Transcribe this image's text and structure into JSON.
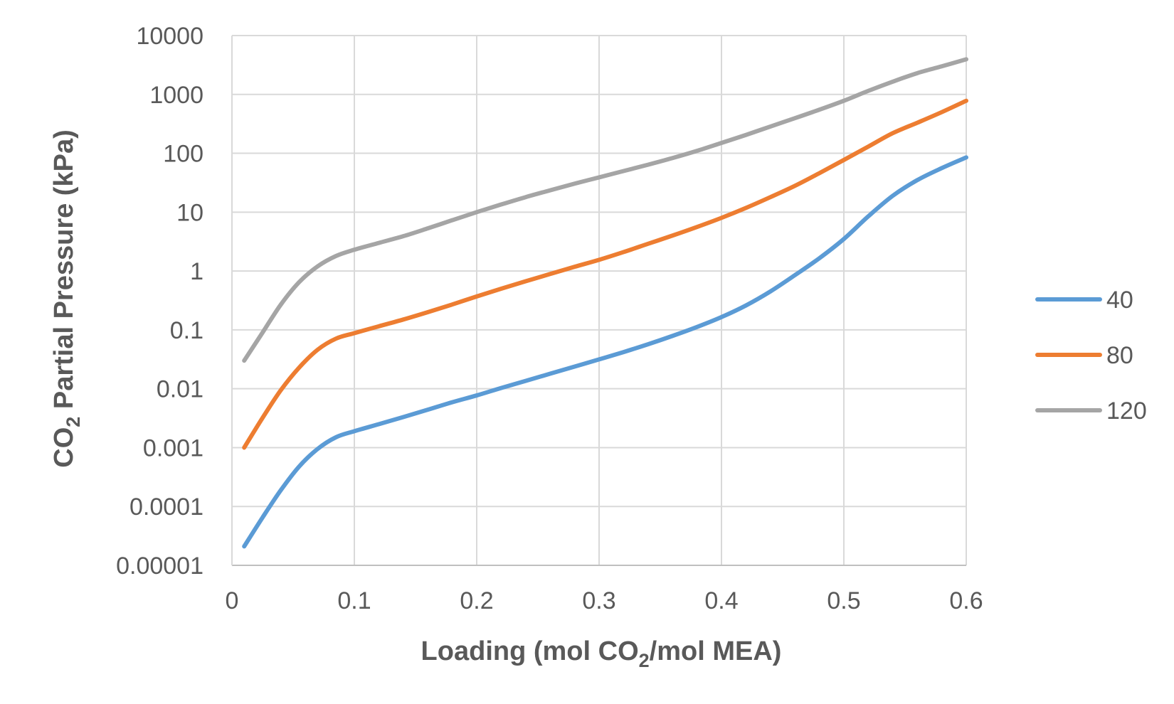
{
  "chart_data": {
    "type": "line",
    "title": "",
    "xlabel": {
      "before_sub": "Loading (mol CO",
      "sub": "2",
      "after_sub": "/mol MEA)"
    },
    "ylabel": {
      "before_sub": "CO",
      "sub": "2",
      "after_sub": " Partial Pressure (kPa)"
    },
    "x_axis": {
      "range": [
        0,
        0.6
      ],
      "ticks": [
        0,
        0.1,
        0.2,
        0.3,
        0.4,
        0.5,
        0.6
      ],
      "tick_labels": [
        "0",
        "0.1",
        "0.2",
        "0.3",
        "0.4",
        "0.5",
        "0.6"
      ]
    },
    "y_axis": {
      "scale": "log",
      "range": [
        1e-05,
        10000
      ],
      "ticks": [
        1e-05,
        0.0001,
        0.001,
        0.01,
        0.1,
        1,
        10,
        100,
        1000,
        10000
      ],
      "tick_labels": [
        "0.00001",
        "0.0001",
        "0.001",
        "0.01",
        "0.1",
        "1",
        "10",
        "100",
        "1000",
        "10000"
      ]
    },
    "grid": true,
    "legend_position": "right",
    "series": [
      {
        "name": "40",
        "color": "#5B9BD5",
        "x": [
          0.01,
          0.025,
          0.04,
          0.055,
          0.07,
          0.085,
          0.1,
          0.12,
          0.14,
          0.16,
          0.18,
          0.2,
          0.22,
          0.24,
          0.26,
          0.28,
          0.3,
          0.32,
          0.34,
          0.36,
          0.38,
          0.4,
          0.42,
          0.44,
          0.46,
          0.48,
          0.5,
          0.52,
          0.54,
          0.56,
          0.58,
          0.6
        ],
        "y": [
          2.1e-05,
          6.5e-05,
          0.00019,
          0.00048,
          0.00095,
          0.0015,
          0.0019,
          0.0025,
          0.0033,
          0.0044,
          0.0059,
          0.0077,
          0.0103,
          0.0136,
          0.018,
          0.0238,
          0.0315,
          0.042,
          0.057,
          0.079,
          0.112,
          0.165,
          0.26,
          0.45,
          0.85,
          1.65,
          3.5,
          8.5,
          19,
          35,
          56,
          85
        ]
      },
      {
        "name": "80",
        "color": "#ED7D31",
        "x": [
          0.01,
          0.025,
          0.04,
          0.055,
          0.07,
          0.085,
          0.1,
          0.12,
          0.14,
          0.16,
          0.18,
          0.2,
          0.22,
          0.24,
          0.26,
          0.28,
          0.3,
          0.32,
          0.34,
          0.36,
          0.38,
          0.4,
          0.42,
          0.44,
          0.46,
          0.48,
          0.5,
          0.52,
          0.54,
          0.56,
          0.58,
          0.6
        ],
        "y": [
          0.001,
          0.0032,
          0.0095,
          0.023,
          0.046,
          0.071,
          0.088,
          0.115,
          0.15,
          0.2,
          0.27,
          0.37,
          0.5,
          0.67,
          0.89,
          1.18,
          1.55,
          2.1,
          2.9,
          4.0,
          5.6,
          8.0,
          11.8,
          18,
          28,
          46,
          77,
          130,
          220,
          330,
          500,
          780
        ]
      },
      {
        "name": "120",
        "color": "#A5A5A5",
        "x": [
          0.01,
          0.025,
          0.04,
          0.055,
          0.07,
          0.085,
          0.1,
          0.12,
          0.14,
          0.16,
          0.18,
          0.2,
          0.22,
          0.24,
          0.26,
          0.28,
          0.3,
          0.32,
          0.34,
          0.36,
          0.38,
          0.4,
          0.42,
          0.44,
          0.46,
          0.48,
          0.5,
          0.52,
          0.54,
          0.56,
          0.58,
          0.6
        ],
        "y": [
          0.03,
          0.09,
          0.27,
          0.65,
          1.2,
          1.8,
          2.3,
          3.0,
          3.9,
          5.3,
          7.3,
          10,
          13.5,
          18,
          23.5,
          30.5,
          39,
          50,
          64,
          83,
          110,
          150,
          205,
          285,
          395,
          550,
          780,
          1150,
          1650,
          2300,
          3000,
          3950
        ]
      }
    ]
  }
}
